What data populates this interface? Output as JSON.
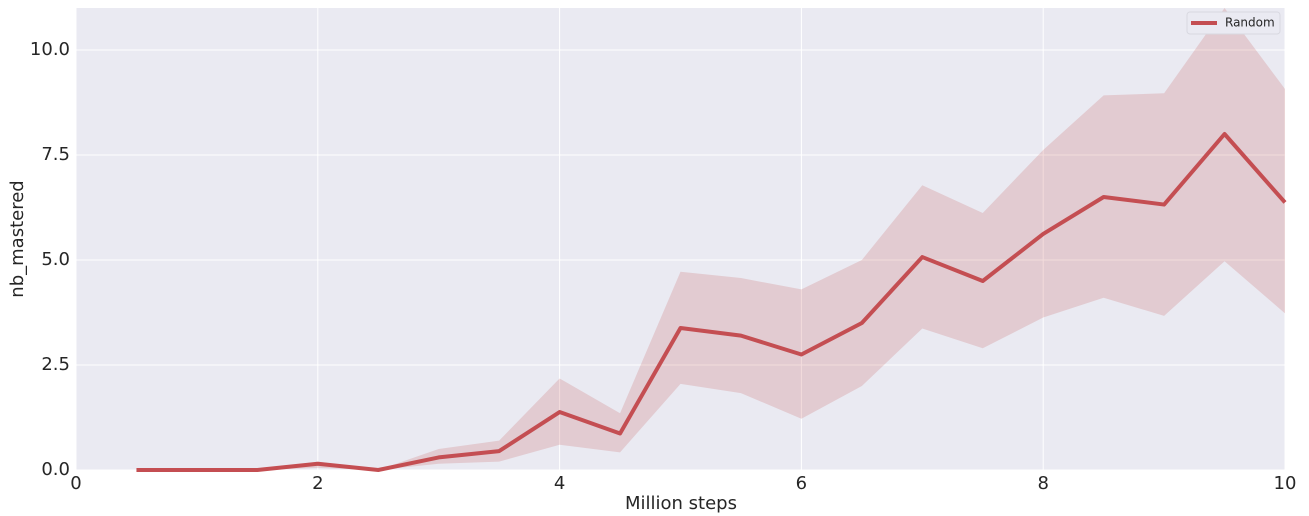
{
  "chart_data": {
    "type": "line",
    "xlabel": "Million steps",
    "ylabel": "nb_mastered",
    "x": [
      0.5,
      1,
      1.5,
      2,
      2.5,
      3,
      3.5,
      4,
      4.5,
      5,
      5.5,
      6,
      6.5,
      7,
      7.5,
      8,
      8.5,
      9,
      9.5,
      10
    ],
    "series": [
      {
        "name": "Random",
        "color": "#c44e52",
        "values": [
          0,
          0,
          0,
          0.15,
          0,
          0.3,
          0.45,
          1.38,
          0.87,
          3.38,
          3.2,
          2.75,
          3.5,
          5.07,
          4.5,
          5.62,
          6.5,
          6.32,
          8.0,
          6.37
        ],
        "upper": [
          0,
          0,
          0,
          0.2,
          0,
          0.5,
          0.7,
          2.18,
          1.35,
          4.72,
          4.57,
          4.3,
          5.0,
          6.78,
          6.12,
          7.62,
          8.92,
          8.97,
          11.0,
          9.07
        ],
        "lower": [
          0,
          0,
          0,
          0.05,
          0,
          0.15,
          0.2,
          0.6,
          0.42,
          2.05,
          1.83,
          1.22,
          2.0,
          3.37,
          2.9,
          3.63,
          4.1,
          3.67,
          4.97,
          3.73
        ]
      }
    ],
    "xlim": [
      0,
      10
    ],
    "xticks": [
      0,
      2,
      4,
      6,
      8,
      10
    ],
    "ylim": [
      0,
      11
    ],
    "yticks": [
      {
        "value": 0,
        "label": "0.0"
      },
      2.5,
      {
        "value": 5,
        "label": "5.0"
      },
      7.5,
      {
        "value": 10,
        "label": "10.0"
      }
    ],
    "grid": true,
    "legend": "upper right"
  }
}
